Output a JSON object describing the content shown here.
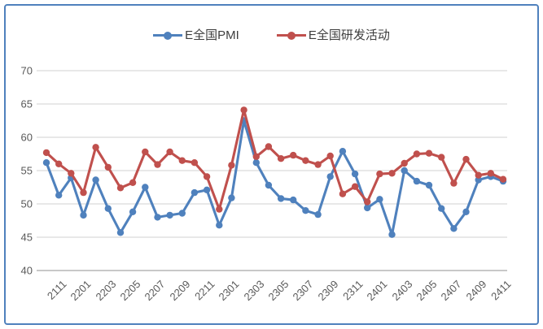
{
  "chart": {
    "legend": [
      {
        "label": "E全国PMI",
        "color": "#4f81bd"
      },
      {
        "label": "E全国研发活动",
        "color": "#c0504d"
      }
    ],
    "frame_border_color": "#4f81bd",
    "gridline_color": "#d9d9d9",
    "axis_line_color": "#a6a6a6",
    "axis_text_color": "#595959"
  },
  "chart_data": {
    "type": "line",
    "categories": [
      "2111",
      "2112",
      "2201",
      "2202",
      "2203",
      "2204",
      "2205",
      "2206",
      "2207",
      "2208",
      "2209",
      "2210",
      "2211",
      "2212",
      "2301",
      "2302",
      "2303",
      "2304",
      "2305",
      "2306",
      "2307",
      "2308",
      "2309",
      "2310",
      "2311",
      "2312",
      "2401",
      "2402",
      "2403",
      "2404",
      "2405",
      "2406",
      "2407",
      "2408",
      "2409",
      "2410",
      "2411",
      "2412"
    ],
    "x_tick_labels": [
      "2111",
      "2201",
      "2203",
      "2205",
      "2207",
      "2209",
      "2211",
      "2301",
      "2303",
      "2305",
      "2307",
      "2309",
      "2311",
      "2401",
      "2403",
      "2405",
      "2407",
      "2409",
      "2411"
    ],
    "x_tick_every": 2,
    "series": [
      {
        "name": "E全国PMI",
        "color": "#4f81bd",
        "values": [
          56.2,
          51.3,
          53.9,
          48.3,
          53.6,
          49.3,
          45.7,
          48.8,
          52.5,
          48.0,
          48.3,
          48.6,
          51.7,
          52.1,
          46.8,
          50.9,
          62.5,
          56.2,
          52.8,
          50.8,
          50.6,
          49.0,
          48.4,
          54.1,
          57.9,
          54.5,
          49.4,
          50.7,
          45.4,
          55.0,
          53.4,
          52.8,
          49.3,
          46.3,
          48.8,
          53.6,
          54.1,
          53.4
        ]
      },
      {
        "name": "E全国研发活动",
        "color": "#c0504d",
        "values": [
          57.7,
          56.0,
          54.6,
          51.7,
          58.5,
          55.5,
          52.4,
          53.2,
          57.8,
          55.9,
          57.8,
          56.5,
          56.2,
          54.1,
          49.2,
          55.8,
          64.1,
          57.1,
          58.6,
          56.8,
          57.3,
          56.5,
          55.9,
          57.2,
          51.5,
          52.6,
          50.3,
          54.5,
          54.6,
          56.1,
          57.5,
          57.6,
          57.0,
          53.1,
          56.7,
          54.3,
          54.6,
          53.7
        ]
      }
    ],
    "ylim": [
      40,
      70
    ],
    "y_ticks": [
      70,
      65,
      60,
      55,
      50,
      45,
      40
    ],
    "grid": "horizontal",
    "legend_position": "top-center",
    "marker": "circle",
    "title": "",
    "xlabel": "",
    "ylabel": ""
  }
}
